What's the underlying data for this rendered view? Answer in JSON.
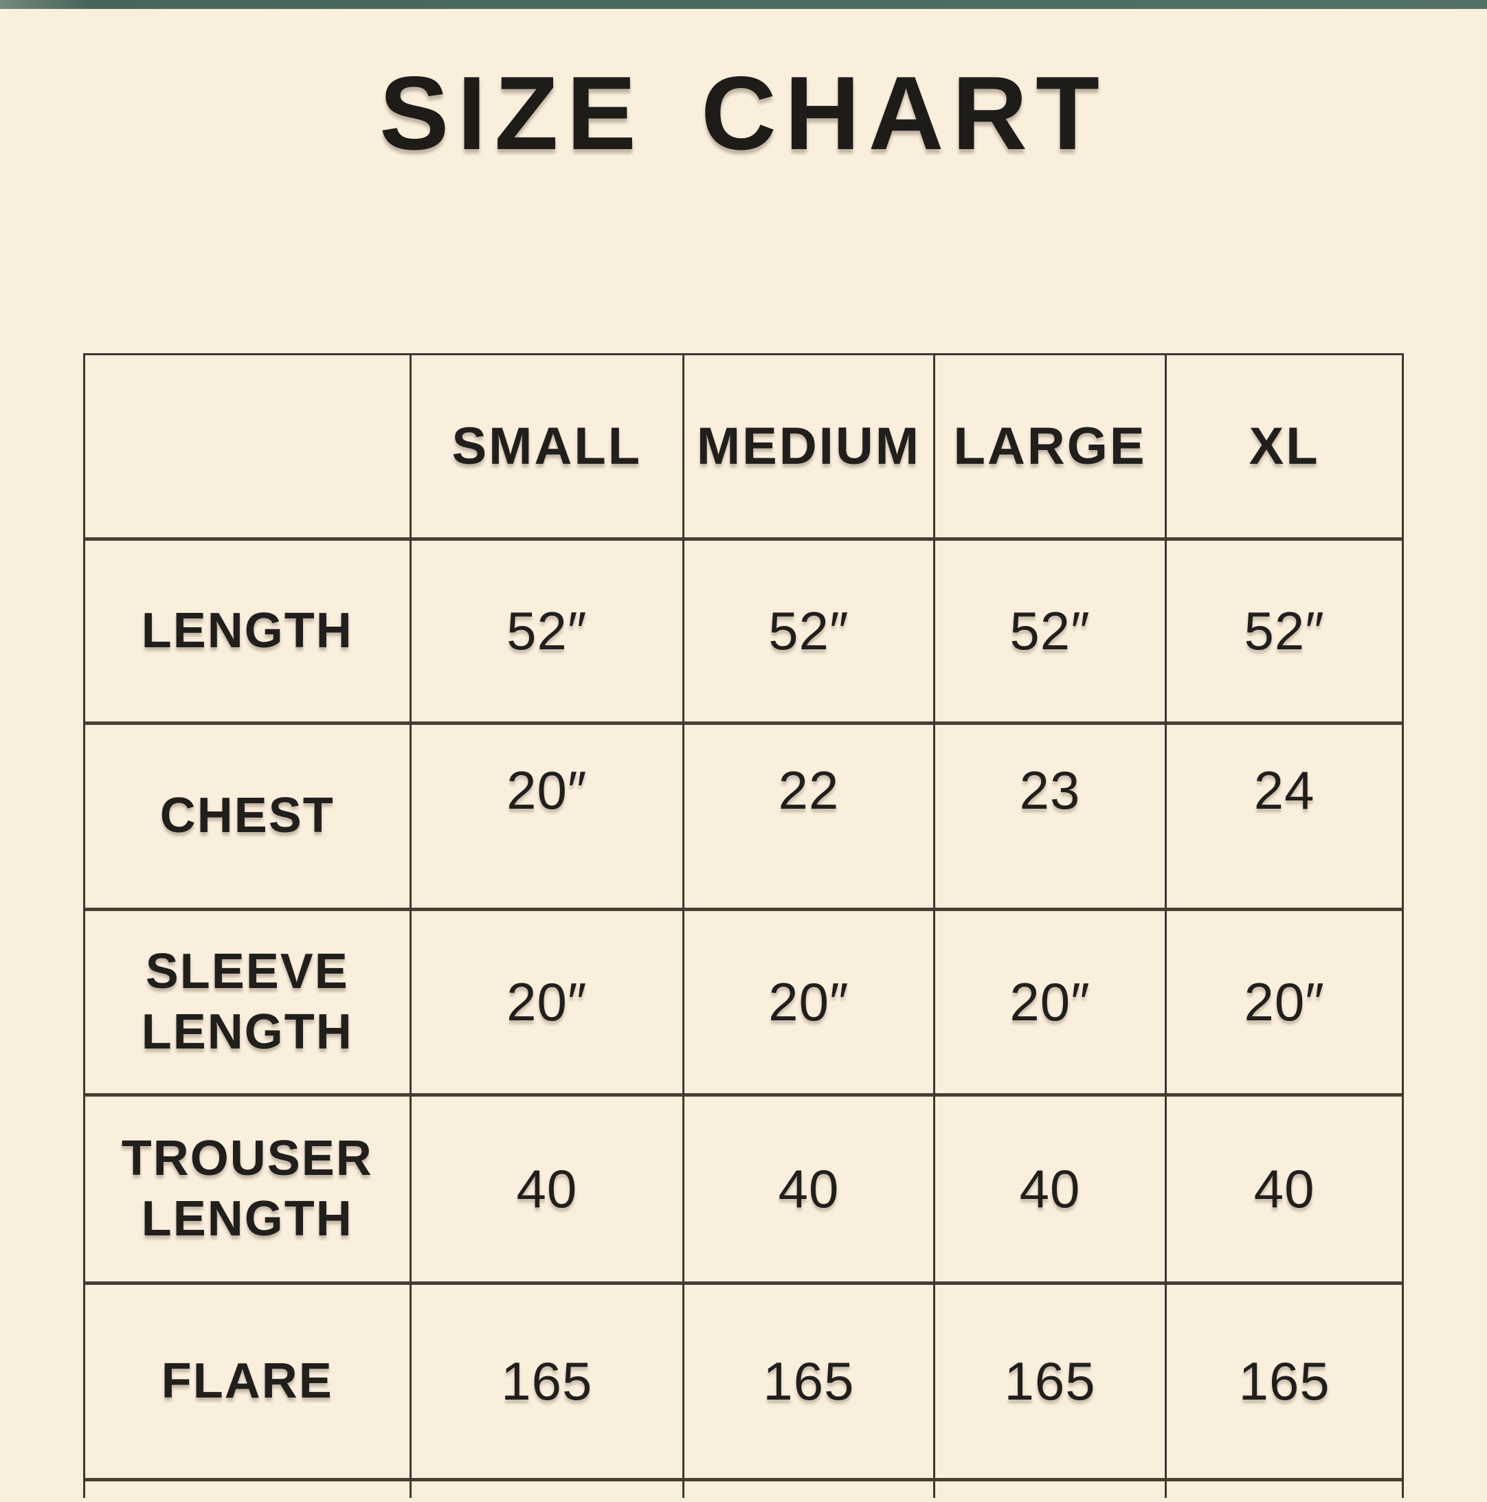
{
  "colors": {
    "background": "#faeedd",
    "top_bar": "#4c6a5f",
    "text": "#211f1c",
    "table_border": "#3e382f"
  },
  "chart_data": {
    "type": "table",
    "title": "SIZE CHART",
    "columns": [
      "",
      "SMALL",
      "MEDIUM",
      "LARGE",
      "XL"
    ],
    "rows": [
      {
        "label": "LENGTH",
        "values": [
          "52″",
          "52″",
          "52″",
          "52″"
        ]
      },
      {
        "label": "CHEST",
        "values": [
          "20″",
          "22",
          "23",
          "24"
        ]
      },
      {
        "label": "SLEEVE LENGTH",
        "values": [
          "20″",
          "20″",
          "20″",
          "20″"
        ]
      },
      {
        "label": "TROUSER LENGTH",
        "values": [
          "40",
          "40",
          "40",
          "40"
        ]
      },
      {
        "label": "FLARE",
        "values": [
          "165",
          "165",
          "165",
          "165"
        ]
      }
    ]
  }
}
